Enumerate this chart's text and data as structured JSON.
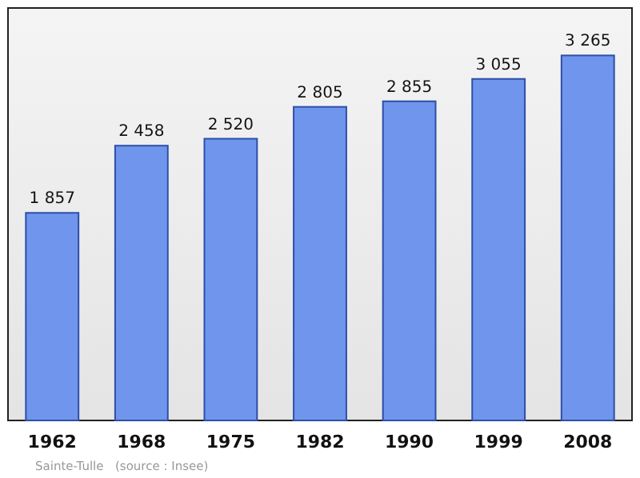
{
  "chart_data": {
    "type": "bar",
    "categories": [
      "1962",
      "1968",
      "1975",
      "1982",
      "1990",
      "1999",
      "2008"
    ],
    "values": [
      1857,
      2458,
      2520,
      2805,
      2855,
      3055,
      3265
    ],
    "value_labels": [
      "1 857",
      "2 458",
      "2 520",
      "2 805",
      "2 855",
      "3 055",
      "3 265"
    ],
    "color": "#6f96ec",
    "grid": false,
    "annotations": [
      "Sainte-Tulle",
      "(source : Insee)"
    ]
  }
}
